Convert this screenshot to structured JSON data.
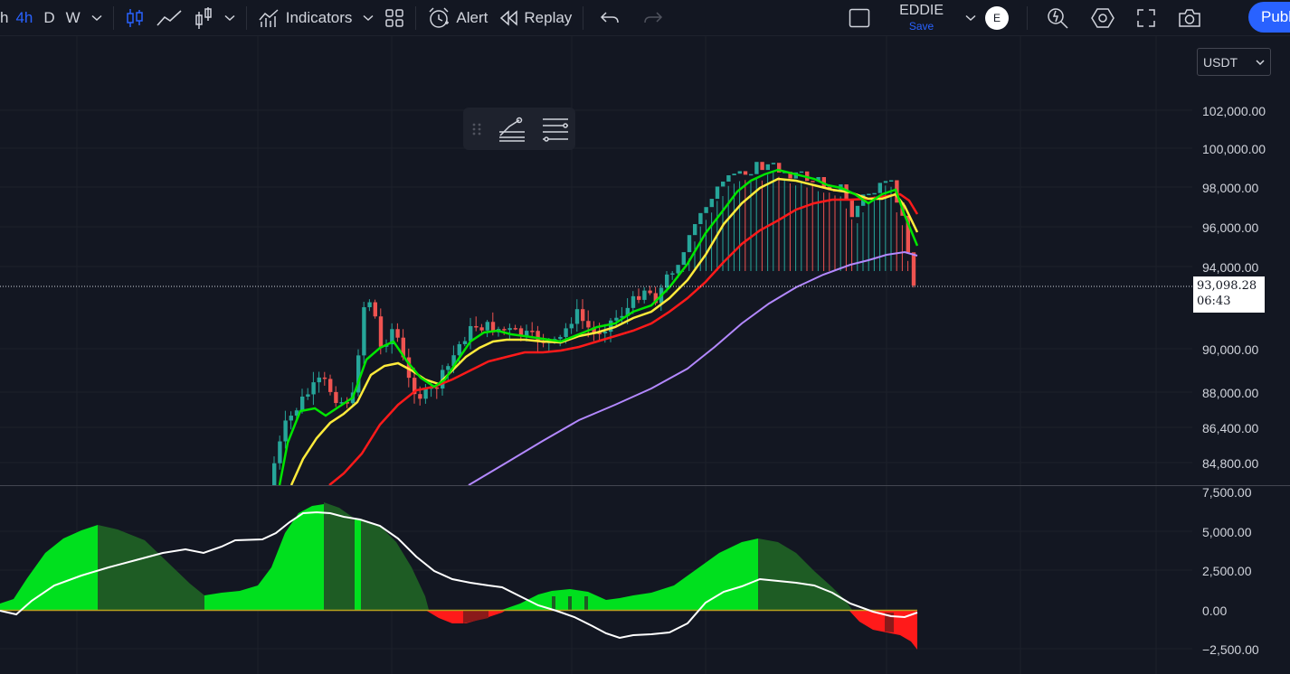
{
  "toolbar": {
    "timeframe_partial": "h",
    "timeframes": [
      "4h",
      "D",
      "W"
    ],
    "active_timeframe": "4h",
    "indicators_label": "Indicators",
    "alert_label": "Alert",
    "replay_label": "Replay"
  },
  "layout": {
    "name": "EDDIE",
    "save_label": "Save"
  },
  "user": {
    "avatar_initial": "E"
  },
  "publish_label": "Publ",
  "currency": "USDT",
  "price_axis": {
    "labels": [
      "102,000.00",
      "100,000.00",
      "98,000.00",
      "96,000.00",
      "94,000.00",
      "90,000.00",
      "88,000.00",
      "86,400.00",
      "84,800.00"
    ]
  },
  "current_price": {
    "value": "93,098.28",
    "countdown": "06:43"
  },
  "oscillator_axis": {
    "labels": [
      "7,500.00",
      "5,000.00",
      "2,500.00",
      "0.00",
      "−2,500.00"
    ]
  },
  "colors": {
    "background": "#131722",
    "accent": "#2962ff",
    "up_candle": "#26a69a",
    "down_candle": "#ef5350",
    "ema_fast": "#00e600",
    "ema_mid": "#ffeb3b",
    "ema_slow": "#ff1a1a",
    "ma_long": "#b388ff",
    "hist_bright_green": "#00e01e",
    "hist_dark_green": "#1e5c24",
    "hist_red": "#ff1a1a",
    "signal_line": "#ffffff"
  },
  "icons": [
    "candles-icon",
    "line-chart-icon",
    "bar-chart-icon",
    "indicators-icon",
    "templates-icon",
    "alert-clock-icon",
    "replay-icon",
    "undo-icon",
    "redo-icon",
    "layout-square-icon",
    "quick-search-icon",
    "settings-hexagon-icon",
    "fullscreen-icon",
    "camera-icon",
    "drag-handle-icon",
    "fib-tool-icon",
    "lines-tool-icon"
  ]
}
